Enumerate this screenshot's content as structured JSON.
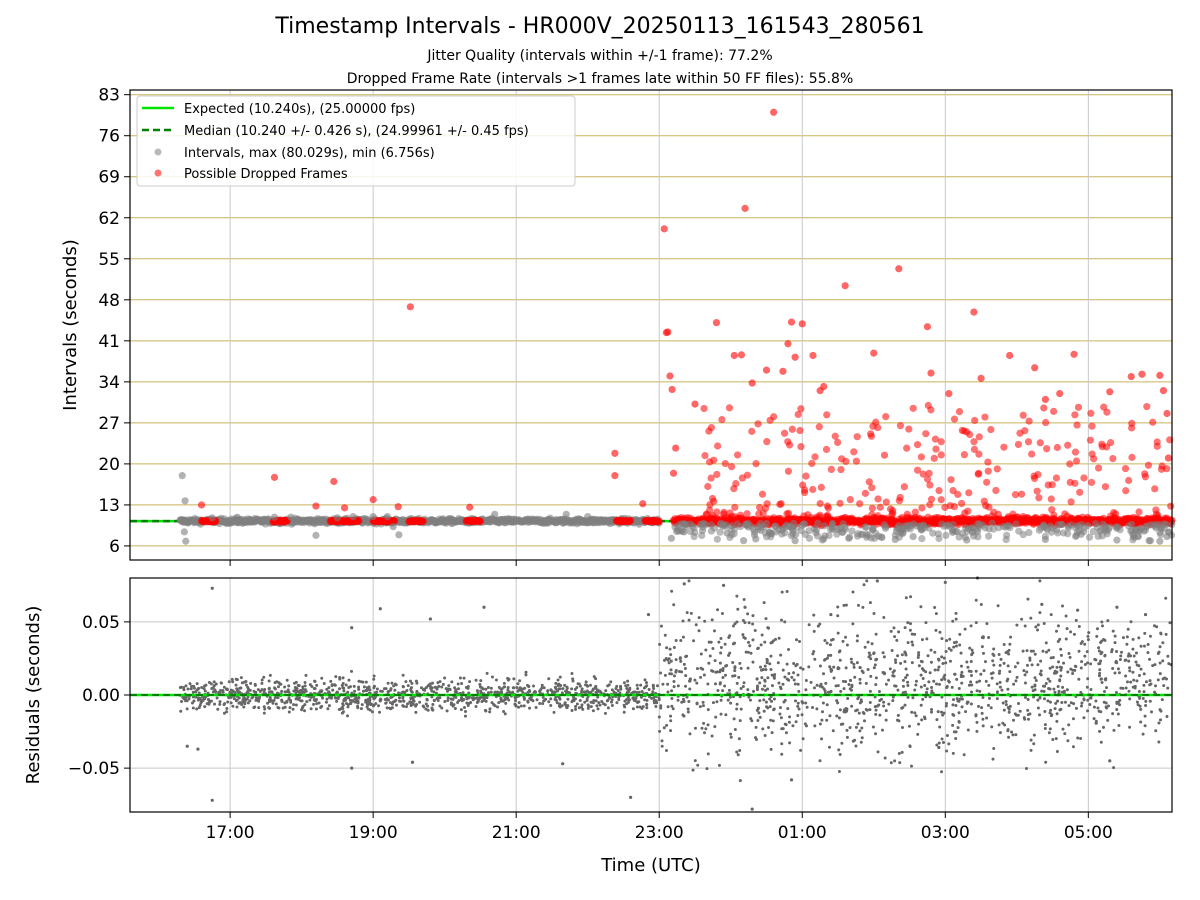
{
  "figure": {
    "title": "Timestamp Intervals - HR000V_20250113_161543_280561",
    "subtitle_jitter": "Jitter Quality (intervals within +/-1 frame): 77.2%",
    "subtitle_dropped": "Dropped Frame Rate (intervals >1 frames late within 50 FF files): 55.8%"
  },
  "colors": {
    "expected_line": "#00e600",
    "median_line": "#008000",
    "intervals": "#7f7f7f",
    "dropped": "#ff0000",
    "hgrid": "#c8b35a",
    "vgrid": "#c8c8c8",
    "residuals": "#666666"
  },
  "chart_data": [
    {
      "type": "scatter",
      "name": "intervals",
      "title": "",
      "ylabel": "Intervals (seconds)",
      "ylim": [
        3.6,
        83.8
      ],
      "yticks": [
        6,
        13,
        20,
        27,
        34,
        41,
        48,
        55,
        62,
        69,
        76,
        83
      ],
      "ytick_labels": [
        "6",
        "13",
        "20",
        "27",
        "34",
        "41",
        "48",
        "55",
        "62",
        "69",
        "76",
        "83"
      ],
      "x_unit": "hours since 00:00 UTC on 2025-01-13 (axis wraps past midnight)",
      "xlim": [
        15.6,
        30.17
      ],
      "xticks": [
        17,
        19,
        21,
        23,
        25,
        27,
        29
      ],
      "xtick_labels": [
        "17:00",
        "19:00",
        "21:00",
        "23:00",
        "01:00",
        "03:00",
        "05:00"
      ],
      "grid": true,
      "legend_position": "top-left",
      "legend": [
        "Expected (10.240s), (25.00000 fps)",
        "Median (10.240 +/- 0.426 s), (24.99961 +/- 0.45 fps)",
        "Intervals, max (80.029s), min (6.756s)",
        "Possible Dropped Frames"
      ],
      "expected_interval": 10.24,
      "median_interval": 10.24,
      "dense_bands": [
        {
          "series": "Intervals",
          "x_range": [
            16.3,
            23.0
          ],
          "y": 10.24,
          "spread": 0.4
        },
        {
          "series": "Possible Dropped Frames",
          "x_range": [
            16.6,
            16.8
          ],
          "y": 10.24
        },
        {
          "series": "Possible Dropped Frames",
          "x_range": [
            17.6,
            17.8
          ],
          "y": 10.24
        },
        {
          "series": "Possible Dropped Frames",
          "x_range": [
            18.4,
            18.8
          ],
          "y": 10.24
        },
        {
          "series": "Possible Dropped Frames",
          "x_range": [
            19.0,
            19.3
          ],
          "y": 10.24
        },
        {
          "series": "Possible Dropped Frames",
          "x_range": [
            19.5,
            19.7
          ],
          "y": 10.24
        },
        {
          "series": "Possible Dropped Frames",
          "x_range": [
            20.3,
            20.5
          ],
          "y": 10.24
        },
        {
          "series": "Possible Dropped Frames",
          "x_range": [
            22.4,
            22.6
          ],
          "y": 10.24
        },
        {
          "series": "Possible Dropped Frames",
          "x_range": [
            22.8,
            23.0
          ],
          "y": 10.24
        },
        {
          "series": "Possible Dropped Frames",
          "x_range": [
            23.2,
            30.17
          ],
          "y": 10.24,
          "spread": 0.6
        },
        {
          "series": "Possible Dropped Frames",
          "x_range": [
            23.6,
            30.17
          ],
          "y_range": [
            10.5,
            30
          ]
        },
        {
          "series": "Intervals",
          "x_range": [
            23.2,
            30.17
          ],
          "y_range": [
            6.8,
            9.9
          ]
        }
      ],
      "series": [
        {
          "name": "Intervals",
          "points": [
            [
              16.33,
              18.0
            ],
            [
              16.37,
              13.7
            ],
            [
              16.36,
              8.4
            ],
            [
              16.38,
              6.8
            ],
            [
              16.75,
              10.8
            ],
            [
              17.1,
              10.9
            ],
            [
              17.62,
              10.9
            ],
            [
              17.85,
              10.9
            ],
            [
              18.2,
              7.8
            ],
            [
              18.5,
              10.8
            ],
            [
              18.72,
              11.0
            ],
            [
              19.0,
              11.0
            ],
            [
              19.2,
              11.0
            ],
            [
              19.28,
              9.3
            ],
            [
              19.36,
              7.9
            ],
            [
              20.7,
              11.4
            ],
            [
              21.7,
              11.4
            ],
            [
              22.0,
              11.0
            ],
            [
              22.72,
              9.7
            ],
            [
              23.17,
              7.3
            ],
            [
              23.95,
              8.2
            ],
            [
              24.18,
              6.9
            ],
            [
              24.35,
              7.2
            ],
            [
              24.9,
              6.9
            ],
            [
              25.3,
              7.2
            ],
            [
              25.65,
              7.3
            ],
            [
              25.9,
              7.5
            ],
            [
              26.3,
              7.1
            ],
            [
              26.55,
              7.6
            ],
            [
              27.3,
              7.0
            ],
            [
              28.4,
              7.1
            ],
            [
              28.9,
              8.0
            ],
            [
              29.4,
              7.0
            ],
            [
              29.85,
              6.9
            ],
            [
              30.0,
              6.8
            ],
            [
              30.1,
              7.6
            ]
          ]
        },
        {
          "name": "Possible Dropped Frames",
          "points": [
            [
              16.6,
              13.0
            ],
            [
              17.62,
              17.7
            ],
            [
              18.2,
              12.8
            ],
            [
              18.45,
              17.0
            ],
            [
              18.6,
              12.5
            ],
            [
              19.0,
              13.9
            ],
            [
              19.35,
              12.7
            ],
            [
              19.52,
              46.8
            ],
            [
              20.35,
              12.6
            ],
            [
              22.38,
              21.8
            ],
            [
              22.38,
              18.0
            ],
            [
              22.77,
              13.2
            ],
            [
              23.07,
              60.1
            ],
            [
              23.1,
              42.4
            ],
            [
              23.12,
              42.5
            ],
            [
              23.15,
              35.0
            ],
            [
              23.18,
              32.7
            ],
            [
              23.2,
              18.4
            ],
            [
              23.23,
              22.7
            ],
            [
              23.5,
              30.2
            ],
            [
              23.8,
              44.1
            ],
            [
              24.05,
              38.5
            ],
            [
              24.15,
              38.6
            ],
            [
              24.3,
              33.8
            ],
            [
              24.2,
              63.6
            ],
            [
              24.5,
              36.0
            ],
            [
              24.6,
              80.0
            ],
            [
              24.73,
              35.8
            ],
            [
              24.8,
              40.5
            ],
            [
              24.85,
              44.2
            ],
            [
              24.9,
              38.2
            ],
            [
              25.0,
              43.9
            ],
            [
              25.15,
              38.5
            ],
            [
              25.25,
              32.5
            ],
            [
              25.3,
              33.2
            ],
            [
              25.6,
              50.4
            ],
            [
              26.0,
              38.9
            ],
            [
              26.35,
              53.3
            ],
            [
              26.75,
              43.4
            ],
            [
              26.8,
              35.5
            ],
            [
              27.05,
              32.0
            ],
            [
              27.4,
              45.9
            ],
            [
              27.5,
              34.6
            ],
            [
              27.9,
              38.5
            ],
            [
              28.25,
              36.4
            ],
            [
              28.4,
              31.0
            ],
            [
              28.6,
              32.0
            ],
            [
              28.8,
              38.7
            ],
            [
              29.3,
              32.3
            ],
            [
              29.6,
              34.9
            ],
            [
              29.75,
              35.3
            ],
            [
              30.0,
              35.1
            ],
            [
              30.05,
              32.5
            ],
            [
              30.1,
              28.6
            ],
            [
              30.12,
              21.0
            ]
          ]
        }
      ]
    },
    {
      "type": "scatter",
      "name": "residuals",
      "title": "",
      "ylabel": "Residuals (seconds)",
      "xlabel": "Time (UTC)",
      "ylim": [
        -0.08,
        0.08
      ],
      "yticks": [
        -0.05,
        0.0,
        0.05
      ],
      "ytick_labels": [
        "−0.05",
        "0.00",
        "0.05"
      ],
      "xlim": [
        15.6,
        30.17
      ],
      "xticks": [
        17,
        19,
        21,
        23,
        25,
        27,
        29
      ],
      "xtick_labels": [
        "17:00",
        "19:00",
        "21:00",
        "23:00",
        "01:00",
        "03:00",
        "05:00"
      ],
      "grid": true,
      "zero_line": 0.0,
      "dense_bands": [
        {
          "series": "Residuals",
          "x_range": [
            16.3,
            23.0
          ],
          "y_range": [
            -0.012,
            0.012
          ]
        },
        {
          "series": "Residuals",
          "x_range": [
            23.0,
            30.17
          ],
          "y_range": [
            -0.045,
            0.065
          ]
        }
      ],
      "series": [
        {
          "name": "Residuals",
          "points": [
            [
              16.75,
              0.073
            ],
            [
              16.75,
              -0.072
            ],
            [
              16.4,
              -0.035
            ],
            [
              16.55,
              -0.037
            ],
            [
              18.7,
              0.046
            ],
            [
              18.7,
              -0.05
            ],
            [
              19.1,
              0.059
            ],
            [
              19.8,
              0.052
            ],
            [
              19.55,
              -0.046
            ],
            [
              20.55,
              0.06
            ],
            [
              21.65,
              -0.047
            ],
            [
              22.6,
              -0.07
            ],
            [
              22.85,
              0.055
            ],
            [
              23.35,
              0.076
            ],
            [
              23.9,
              0.075
            ],
            [
              24.3,
              -0.078
            ],
            [
              24.2,
              0.06
            ],
            [
              24.85,
              -0.058
            ],
            [
              25.4,
              0.055
            ],
            [
              26.05,
              0.078
            ],
            [
              27.0,
              0.077
            ],
            [
              27.45,
              0.08
            ],
            [
              28.35,
              0.062
            ],
            [
              28.85,
              0.058
            ],
            [
              29.4,
              0.06
            ],
            [
              29.8,
              0.055
            ],
            [
              29.3,
              -0.045
            ]
          ]
        }
      ]
    }
  ]
}
